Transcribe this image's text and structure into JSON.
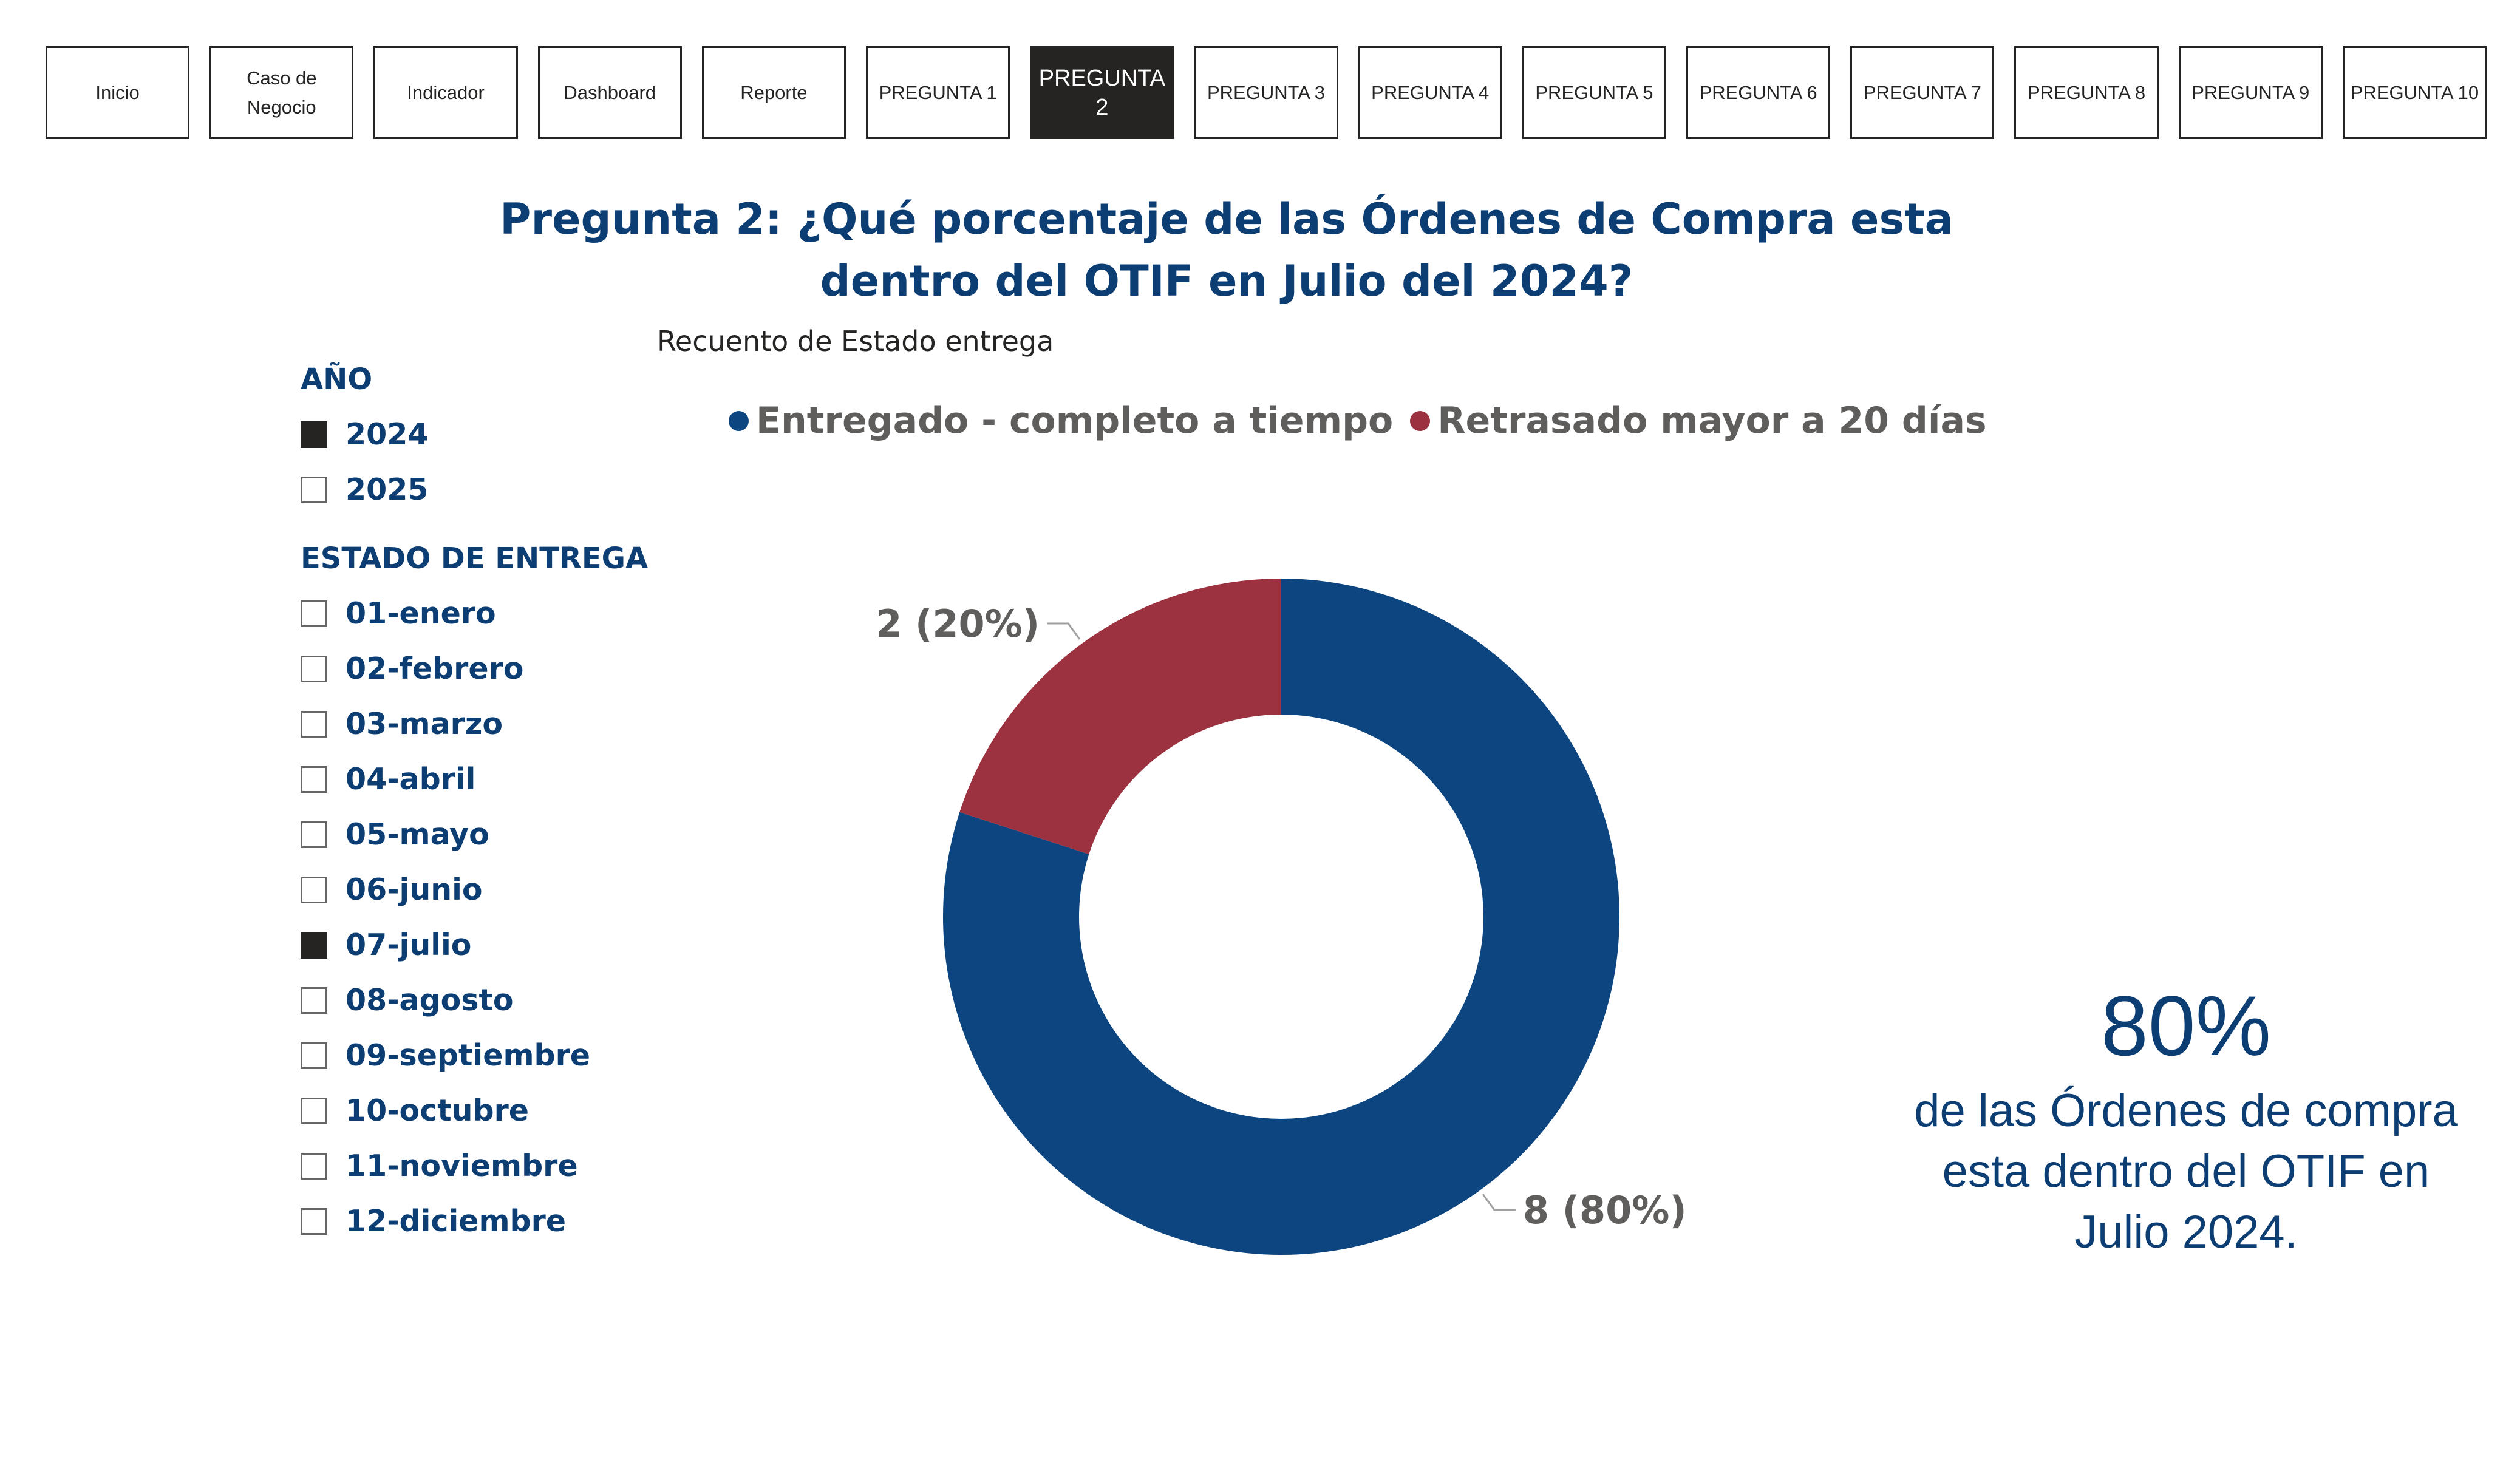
{
  "nav": [
    {
      "label": "Inicio",
      "active": false
    },
    {
      "label": "Caso de\nNegocio",
      "active": false
    },
    {
      "label": "Indicador",
      "active": false
    },
    {
      "label": "Dashboard",
      "active": false
    },
    {
      "label": "Reporte",
      "active": false
    },
    {
      "label": "PREGUNTA 1",
      "active": false
    },
    {
      "label": "PREGUNTA 2",
      "active": true
    },
    {
      "label": "PREGUNTA 3",
      "active": false
    },
    {
      "label": "PREGUNTA 4",
      "active": false
    },
    {
      "label": "PREGUNTA 5",
      "active": false
    },
    {
      "label": "PREGUNTA 6",
      "active": false
    },
    {
      "label": "PREGUNTA 7",
      "active": false
    },
    {
      "label": "PREGUNTA 8",
      "active": false
    },
    {
      "label": "PREGUNTA 9",
      "active": false
    },
    {
      "label": "PREGUNTA 10",
      "active": false
    }
  ],
  "page_title": "Pregunta 2: ¿Qué porcentaje de las Órdenes de Compra esta dentro del OTIF en Julio del 2024?",
  "year_slicer": {
    "title": "AÑO",
    "items": [
      {
        "label": "2024",
        "checked": true
      },
      {
        "label": "2025",
        "checked": false
      }
    ]
  },
  "month_slicer": {
    "title": "ESTADO DE ENTREGA",
    "items": [
      {
        "label": "01-enero",
        "checked": false
      },
      {
        "label": "02-febrero",
        "checked": false
      },
      {
        "label": "03-marzo",
        "checked": false
      },
      {
        "label": "04-abril",
        "checked": false
      },
      {
        "label": "05-mayo",
        "checked": false
      },
      {
        "label": "06-junio",
        "checked": false
      },
      {
        "label": "07-julio",
        "checked": true
      },
      {
        "label": "08-agosto",
        "checked": false
      },
      {
        "label": "09-septiembre",
        "checked": false
      },
      {
        "label": "10-octubre",
        "checked": false
      },
      {
        "label": "11-noviembre",
        "checked": false
      },
      {
        "label": "12-diciembre",
        "checked": false
      }
    ]
  },
  "chart_data": {
    "type": "pie",
    "title": "Recuento de Estado entrega",
    "legend_position": "top",
    "slices": [
      {
        "name": "Entregado - completo a tiempo",
        "value": 8,
        "percent": 80,
        "label": "8 (80%)",
        "color": "#0c4580"
      },
      {
        "name": "Retrasado mayor a 20 días",
        "value": 2,
        "percent": 20,
        "label": "2 (20%)",
        "color": "#9c323f"
      }
    ]
  },
  "kpi": {
    "value": "80%",
    "text": "de las Órdenes de compra esta dentro del OTIF en Julio 2024."
  }
}
